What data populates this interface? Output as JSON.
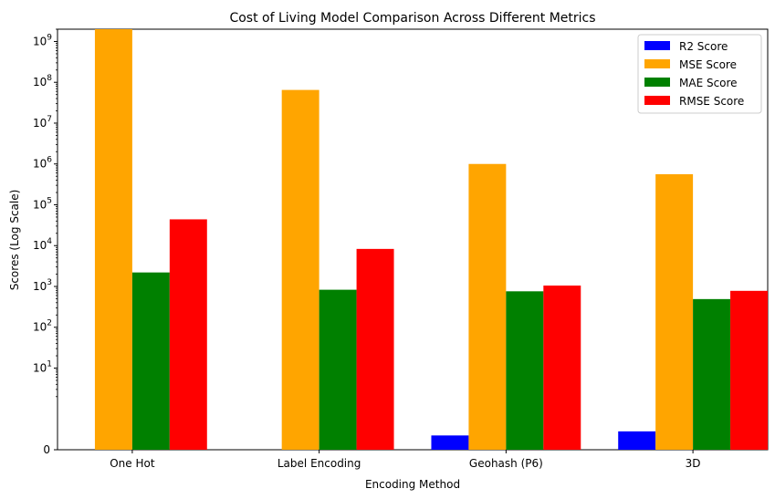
{
  "chart_data": {
    "type": "bar",
    "title": "Cost of Living Model Comparison Across Different Metrics",
    "xlabel": "Encoding Method",
    "ylabel": "Scores (Log Scale)",
    "yscale": "symlog",
    "ylim": [
      0,
      2000000000
    ],
    "yticks": [
      {
        "value": 0,
        "label": "0"
      },
      {
        "value": 10,
        "label": "10",
        "exp": "1"
      },
      {
        "value": 100,
        "label": "10",
        "exp": "2"
      },
      {
        "value": 1000,
        "label": "10",
        "exp": "3"
      },
      {
        "value": 10000,
        "label": "10",
        "exp": "4"
      },
      {
        "value": 100000,
        "label": "10",
        "exp": "5"
      },
      {
        "value": 1000000,
        "label": "10",
        "exp": "6"
      },
      {
        "value": 10000000,
        "label": "10",
        "exp": "7"
      },
      {
        "value": 100000000,
        "label": "10",
        "exp": "8"
      },
      {
        "value": 1000000000,
        "label": "10",
        "exp": "9"
      }
    ],
    "categories": [
      "One Hot",
      "Label Encoding",
      "Geohash (P6)",
      "3D"
    ],
    "series": [
      {
        "name": "R2 Score",
        "color": "#0000ff",
        "values": [
          0.0,
          0.0,
          0.35,
          0.45
        ]
      },
      {
        "name": "MSE Score",
        "color": "#ffa500",
        "values": [
          2000000000,
          65000000,
          1000000,
          560000
        ]
      },
      {
        "name": "MAE Score",
        "color": "#008000",
        "values": [
          2200,
          830,
          760,
          490
        ]
      },
      {
        "name": "RMSE Score",
        "color": "#ff0000",
        "values": [
          44000,
          8300,
          1050,
          780
        ]
      }
    ],
    "grid": false,
    "legend_position": "top-right"
  }
}
